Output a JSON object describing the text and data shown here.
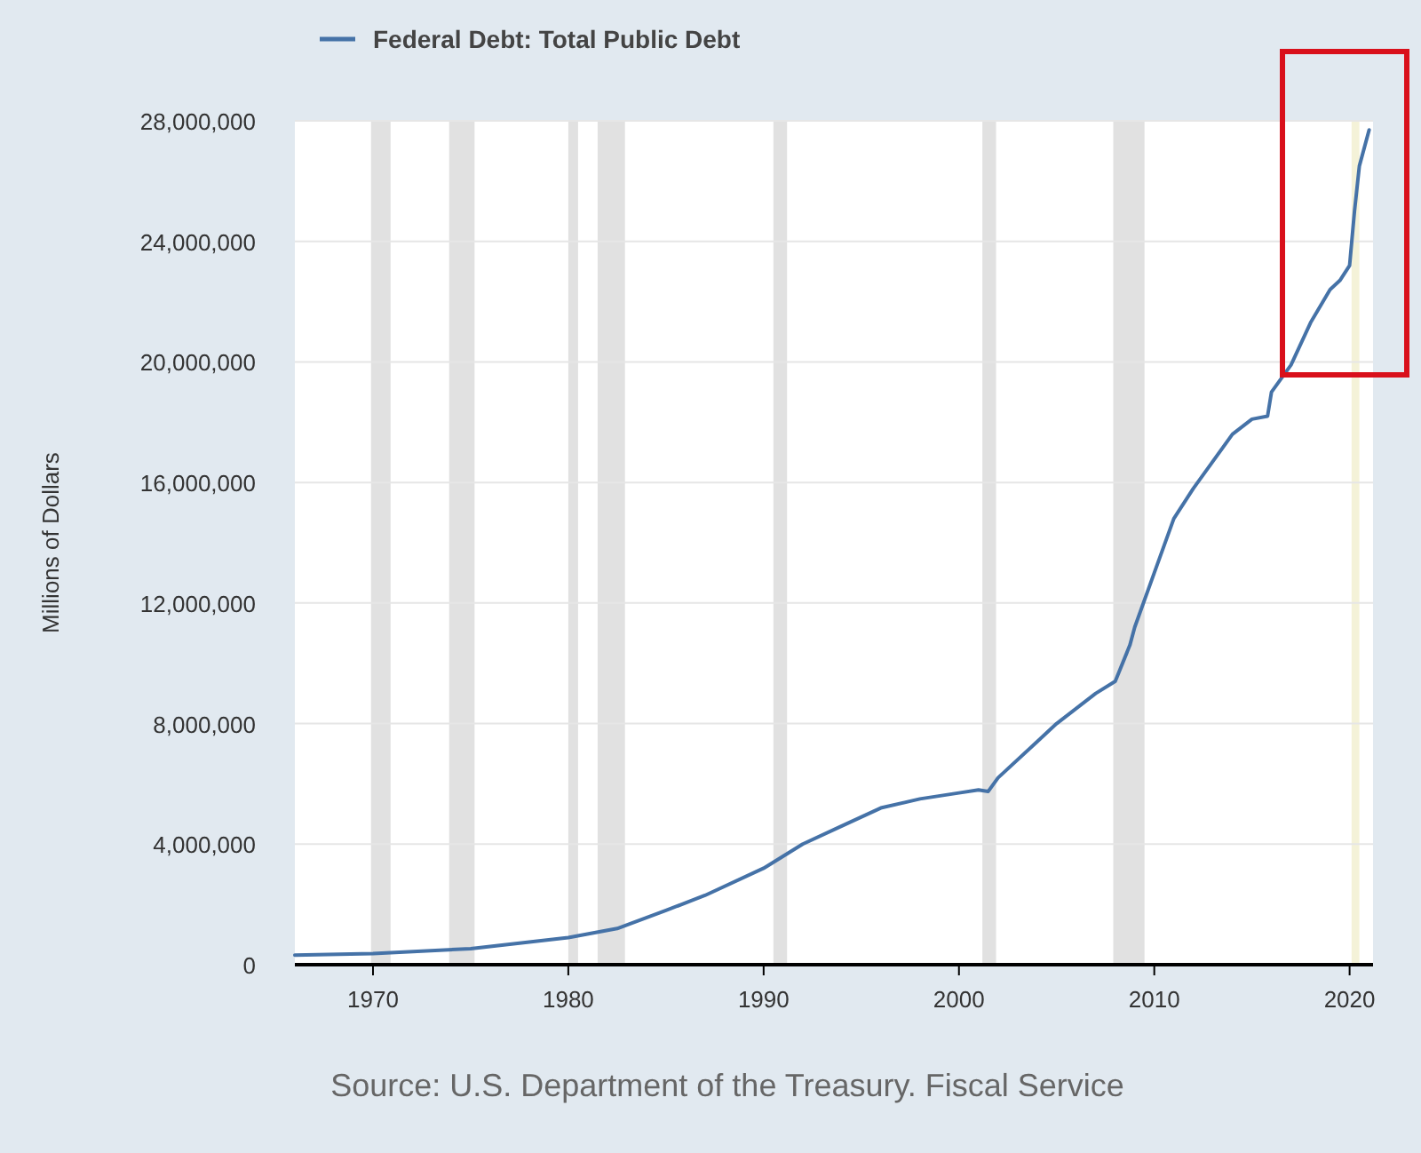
{
  "chart_data": {
    "type": "line",
    "ylabel": "Millions of Dollars",
    "annotations": [
      "Source: U.S. Department of the Treasury. Fiscal Service"
    ],
    "x": [
      1966,
      1970,
      1975,
      1980,
      1982.5,
      1985,
      1987,
      1990,
      1992,
      1994,
      1996,
      1998,
      2000,
      2001,
      2001.5,
      2002,
      2004,
      2005,
      2006,
      2007,
      2008,
      2008.75,
      2009,
      2010,
      2011,
      2012,
      2013,
      2014,
      2015,
      2015.8,
      2016,
      2017,
      2018,
      2019,
      2019.5,
      2020,
      2020.25,
      2020.5,
      2021
    ],
    "series": [
      {
        "name": "Federal Debt: Total Public Debt",
        "color": "#4572a7",
        "values": [
          320000,
          370000,
          530000,
          900000,
          1200000,
          1800000,
          2300000,
          3200000,
          4000000,
          4600000,
          5200000,
          5500000,
          5700000,
          5800000,
          5750000,
          6200000,
          7400000,
          8000000,
          8500000,
          9000000,
          9400000,
          10600000,
          11200000,
          13000000,
          14800000,
          15800000,
          16700000,
          17600000,
          18100000,
          18200000,
          19000000,
          19900000,
          21300000,
          22400000,
          22700000,
          23200000,
          25000000,
          26500000,
          27700000
        ]
      }
    ],
    "xlim": [
      1966,
      2021.2
    ],
    "xticks": [
      1970,
      1980,
      1990,
      2000,
      2010,
      2020
    ],
    "ylim": [
      0,
      28000000
    ],
    "yticks": [
      0,
      {
        "value": 4000000,
        "label": "4,000,000"
      },
      {
        "value": 8000000,
        "label": "8,000,000"
      },
      {
        "value": 12000000,
        "label": "12,000,000"
      },
      {
        "value": 16000000,
        "label": "16,000,000"
      },
      {
        "value": 20000000,
        "label": "20,000,000"
      },
      {
        "value": 24000000,
        "label": "24,000,000"
      },
      {
        "value": 28000000,
        "label": "28,000,000"
      }
    ],
    "grid": "y",
    "legend": "top left",
    "line_style": "solid",
    "marker": "none",
    "bands": [
      {
        "axis": "x",
        "from": 1969.9,
        "to": 1970.9,
        "color": "#e1e1e1"
      },
      {
        "axis": "x",
        "from": 1973.9,
        "to": 1975.2,
        "color": "#e1e1e1"
      },
      {
        "axis": "x",
        "from": 1980.0,
        "to": 1980.5,
        "color": "#e1e1e1"
      },
      {
        "axis": "x",
        "from": 1981.5,
        "to": 1982.9,
        "color": "#e1e1e1"
      },
      {
        "axis": "x",
        "from": 1990.5,
        "to": 1991.2,
        "color": "#e1e1e1"
      },
      {
        "axis": "x",
        "from": 2001.2,
        "to": 2001.9,
        "color": "#e1e1e1"
      },
      {
        "axis": "x",
        "from": 2007.9,
        "to": 2009.5,
        "color": "#e1e1e1"
      },
      {
        "axis": "x",
        "from": 2020.1,
        "to": 2020.5,
        "color": "#f4f2d8"
      }
    ]
  }
}
